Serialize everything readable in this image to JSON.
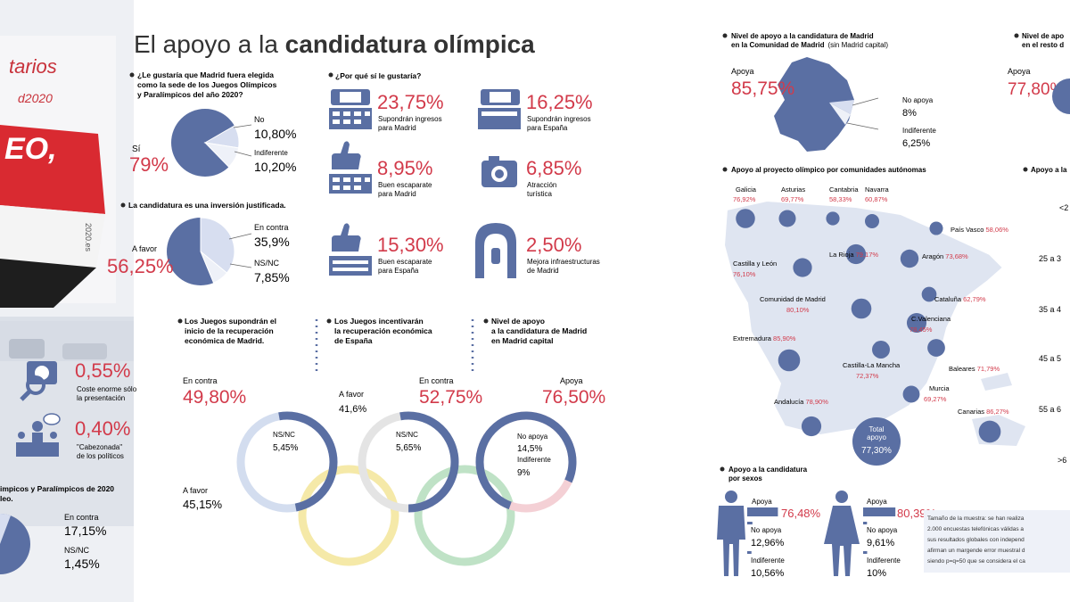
{
  "colors": {
    "accent_red": "#d23a4a",
    "blue": "#5a6fa3",
    "light_blue": "#d7def0",
    "map_bg": "#dfe5f1",
    "ring_blue": "#3d6ab5",
    "ring_yellow": "#f2cf40",
    "ring_black": "#2b2b2b",
    "ring_green": "#3aa35a",
    "ring_red": "#d6384b"
  },
  "title": "El apoyo a la candidatura olímpica",
  "title_parts": {
    "normal": "El apoyo a la ",
    "bold": "candidatura olímpica"
  },
  "banner": {
    "text_top": "tarios",
    "text_mid": "d2020",
    "text_red": "EO,",
    "text_side": "2020.es"
  },
  "q1": {
    "question": [
      "¿Le gustaría que Madrid fuera elegida",
      "como la sede de los Juegos Olímpicos",
      "y Paralímpicos del año 2020?"
    ],
    "si_label": "Sí",
    "si_value": "79%",
    "no_label": "No",
    "no_value": "10,80%",
    "ind_label": "Indiferente",
    "ind_value": "10,20%"
  },
  "q2": {
    "question": "La candidatura es una inversión justificada.",
    "favor_label": "A favor",
    "favor_value": "56,25%",
    "contra_label": "En contra",
    "contra_value": "35,9%",
    "nsnc_label": "NS/NC",
    "nsnc_value": "7,85%"
  },
  "reasons": {
    "question": "¿Por qué sí le gustaría?",
    "items": [
      {
        "value": "23,75%",
        "text": [
          "Supondrán ingresos",
          "para Madrid"
        ],
        "icon": "money-icon"
      },
      {
        "value": "16,25%",
        "text": [
          "Supondrán ingresos",
          "para España"
        ],
        "icon": "money-icon"
      },
      {
        "value": "8,95%",
        "text": [
          "Buen escaparate",
          "para Madrid"
        ],
        "icon": "thumbs-up-icon"
      },
      {
        "value": "6,85%",
        "text": [
          "Atracción",
          "turística"
        ],
        "icon": "camera-icon"
      },
      {
        "value": "15,30%",
        "text": [
          "Buen escaparate",
          "para España"
        ],
        "icon": "thumbs-up-icon"
      },
      {
        "value": "2,50%",
        "text": [
          "Mejora infraestructuras",
          "de Madrid"
        ],
        "icon": "metro-icon"
      }
    ]
  },
  "left_bottom": {
    "items": [
      {
        "value": "0,55%",
        "text": [
          "Coste enorme sólo",
          "la presentación"
        ]
      },
      {
        "value": "0,40%",
        "text": [
          "\"Cabezonada\"",
          "de los políticos"
        ]
      }
    ],
    "question": [
      "impicos y Paralímpicos de 2020",
      "leo."
    ],
    "contra_label": "En contra",
    "contra_value": "17,15%",
    "nsnc_label": "NS/NC",
    "nsnc_value": "1,45%"
  },
  "rings": {
    "recuperacion_madrid": {
      "question": [
        "Los Juegos supondrán el",
        "inicio de la recuperación",
        "económica de Madrid."
      ],
      "contra_label": "En contra",
      "contra_value": "49,80%",
      "nsnc_label": "NS/NC",
      "nsnc_value": "5,45%",
      "favor_label": "A favor",
      "favor_value": "45,15%"
    },
    "recuperacion_espana": {
      "question": [
        "Los Juegos incentivarán",
        "la recuperación económica",
        "de España"
      ],
      "favor_label": "A favor",
      "favor_value": "41,6%",
      "contra_label": "En contra",
      "contra_value": "52,75%",
      "nsnc_label": "NS/NC",
      "nsnc_value": "5,65%"
    },
    "apoyo_capital": {
      "question": [
        "Nivel de apoyo",
        "a la candidatura de Madrid",
        "en Madrid capital"
      ],
      "apoya_label": "Apoya",
      "apoya_value": "76,50%",
      "noapoya_label": "No apoya",
      "noapoya_value": "14,5%",
      "ind_label": "Indiferente",
      "ind_value": "9%"
    }
  },
  "comunidad": {
    "question": [
      "Nivel de apoyo a la candidatura de Madrid",
      "en la Comunidad de Madrid"
    ],
    "question_suffix": "(sin Madrid capital)",
    "apoya_label": "Apoya",
    "apoya_value": "85,75%",
    "noapoya_label": "No apoya",
    "noapoya_value": "8%",
    "ind_label": "Indiferente",
    "ind_value": "6,25%"
  },
  "resto": {
    "question": [
      "Nivel de apo",
      "en el resto d"
    ],
    "apoya_label": "Apoya",
    "apoya_value": "77,80%"
  },
  "ccaa": {
    "title": "Apoyo al proyecto olímpico por comunidades autónomas",
    "top_row": [
      {
        "name": "Galicia",
        "value": "76,92%"
      },
      {
        "name": "Asturias",
        "value": "69,77%"
      },
      {
        "name": "Cantabria",
        "value": "58,33%"
      },
      {
        "name": "Navarra",
        "value": "60,87%"
      }
    ],
    "labels": [
      {
        "name": "País Vasco",
        "value": "58,06%"
      },
      {
        "name": "La Rioja",
        "value": "79,17%"
      },
      {
        "name": "Aragón",
        "value": "73,68%"
      },
      {
        "name": "Castilla y León",
        "value": "76,10%"
      },
      {
        "name": "Cataluña",
        "value": "62,79%"
      },
      {
        "name": "Comunidad de Madrid",
        "value": "80,10%"
      },
      {
        "name": "C.Valenciana",
        "value": "78,45%"
      },
      {
        "name": "Extremadura",
        "value": "85,90%"
      },
      {
        "name": "Castilla-La Mancha",
        "value": "72,37%"
      },
      {
        "name": "Baleares",
        "value": "71,79%"
      },
      {
        "name": "Murcia",
        "value": "69,27%"
      },
      {
        "name": "Andalucía",
        "value": "78,90%"
      },
      {
        "name": "Canarias",
        "value": "86,27%"
      }
    ],
    "total_label": [
      "Total",
      "apoyo"
    ],
    "total_value": "77,30%"
  },
  "age": {
    "title": "Apoyo a la",
    "groups": [
      "<2",
      "25 a 3",
      "35 a 4",
      "45 a 5",
      "55 a 6",
      ">6"
    ]
  },
  "sexos": {
    "title": [
      "Apoyo a la candidatura",
      "por sexos"
    ],
    "hombres": {
      "apoya_label": "Apoya",
      "apoya_value": "76,48%",
      "noapoya_label": "No apoya",
      "noapoya_value": "12,96%",
      "ind_label": "Indiferente",
      "ind_value": "10,56%"
    },
    "mujeres": {
      "apoya_label": "Apoya",
      "apoya_value": "80,39%",
      "noapoya_label": "No apoya",
      "noapoya_value": "9,61%",
      "ind_label": "Indiferente",
      "ind_value": "10%"
    }
  },
  "methodology": [
    "Tamaño de la muestra: se han realiza",
    "2.000 encuestas telefónicas válidas a",
    "sus resultados globales con independ",
    "afirman un margende error muestral d",
    "siendo p=q=50 que se considera el ca"
  ],
  "chart_data": [
    {
      "type": "pie",
      "title": "¿Le gustaría que Madrid fuera elegida como la sede de los Juegos Olímpicos y Paralímpicos del año 2020?",
      "categories": [
        "Sí",
        "No",
        "Indiferente"
      ],
      "values": [
        79,
        10.8,
        10.2
      ]
    },
    {
      "type": "pie",
      "title": "La candidatura es una inversión justificada.",
      "categories": [
        "A favor",
        "En contra",
        "NS/NC"
      ],
      "values": [
        56.25,
        35.9,
        7.85
      ]
    },
    {
      "type": "bar",
      "title": "¿Por qué sí le gustaría?",
      "categories": [
        "Supondrán ingresos para Madrid",
        "Supondrán ingresos para España",
        "Buen escaparate para Madrid",
        "Atracción turística",
        "Buen escaparate para España",
        "Mejora infraestructuras de Madrid",
        "Coste enorme sólo la presentación",
        "\"Cabezonada\" de los políticos"
      ],
      "values": [
        23.75,
        16.25,
        8.95,
        6.85,
        15.3,
        2.5,
        0.55,
        0.4
      ]
    },
    {
      "type": "pie",
      "title": "Los Juegos supondrán el inicio de la recuperación económica de Madrid.",
      "categories": [
        "En contra",
        "NS/NC",
        "A favor"
      ],
      "values": [
        49.8,
        5.45,
        45.15
      ]
    },
    {
      "type": "pie",
      "title": "Los Juegos incentivarán la recuperación económica de España",
      "categories": [
        "A favor",
        "En contra",
        "NS/NC"
      ],
      "values": [
        41.6,
        52.75,
        5.65
      ]
    },
    {
      "type": "pie",
      "title": "Nivel de apoyo a la candidatura de Madrid en Madrid capital",
      "categories": [
        "Apoya",
        "No apoya",
        "Indiferente"
      ],
      "values": [
        76.5,
        14.5,
        9
      ]
    },
    {
      "type": "pie",
      "title": "Nivel de apoyo a la candidatura de Madrid en la Comunidad de Madrid (sin Madrid capital)",
      "categories": [
        "Apoya",
        "No apoya",
        "Indiferente"
      ],
      "values": [
        85.75,
        8,
        6.25
      ]
    },
    {
      "type": "bar",
      "title": "Apoyo al proyecto olímpico por comunidades autónomas",
      "categories": [
        "Galicia",
        "Asturias",
        "Cantabria",
        "Navarra",
        "País Vasco",
        "La Rioja",
        "Aragón",
        "Castilla y León",
        "Cataluña",
        "Comunidad de Madrid",
        "C.Valenciana",
        "Extremadura",
        "Castilla-La Mancha",
        "Baleares",
        "Murcia",
        "Andalucía",
        "Canarias"
      ],
      "values": [
        76.92,
        69.77,
        58.33,
        60.87,
        58.06,
        79.17,
        73.68,
        76.1,
        62.79,
        80.1,
        78.45,
        85.9,
        72.37,
        71.79,
        69.27,
        78.9,
        86.27
      ]
    },
    {
      "type": "bar",
      "title": "Apoyo a la candidatura por sexos",
      "categories": [
        "Apoya",
        "No apoya",
        "Indiferente"
      ],
      "series": [
        {
          "values": [
            76.48,
            12.96,
            10.56
          ]
        },
        {
          "values": [
            80.39,
            9.61,
            10
          ]
        }
      ]
    }
  ]
}
